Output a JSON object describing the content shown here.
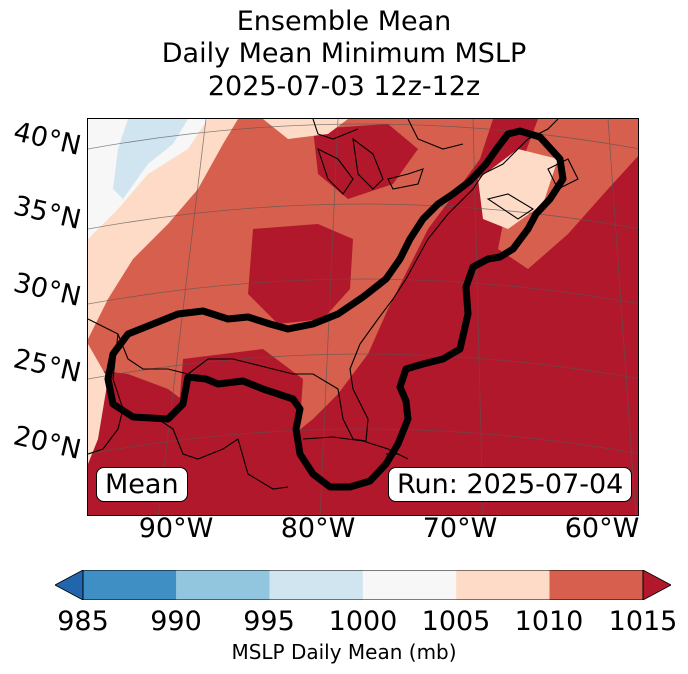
{
  "title": {
    "line1": "Ensemble Mean",
    "line2": "Daily Mean Minimum MSLP",
    "line3": "2025-07-03 12z-12z"
  },
  "map": {
    "lat_labels": [
      "40°N",
      "35°N",
      "30°N",
      "25°N",
      "20°N"
    ],
    "lon_labels": [
      "90°W",
      "80°W",
      "70°W",
      "60°W"
    ],
    "mean_label": "Mean",
    "run_label": "Run: 2025-07-04",
    "contour_color": "#000000"
  },
  "colorbar": {
    "ticks": [
      "985",
      "990",
      "995",
      "1000",
      "1005",
      "1010",
      "1015"
    ],
    "label": "MSLP Daily Mean (mb)",
    "colors": [
      "#2166ac",
      "#3f8fc4",
      "#92c5de",
      "#d1e5f0",
      "#f7f7f7",
      "#fddbc7",
      "#d6604d",
      "#b2182b"
    ]
  },
  "colors": {
    "mslp_1015_plus": "#b2182b",
    "mslp_1010_1015": "#d6604d",
    "mslp_1005_1010": "#fddbc7",
    "mslp_1000_1005": "#f7f7f7",
    "mslp_995_1000": "#d1e5f0"
  }
}
